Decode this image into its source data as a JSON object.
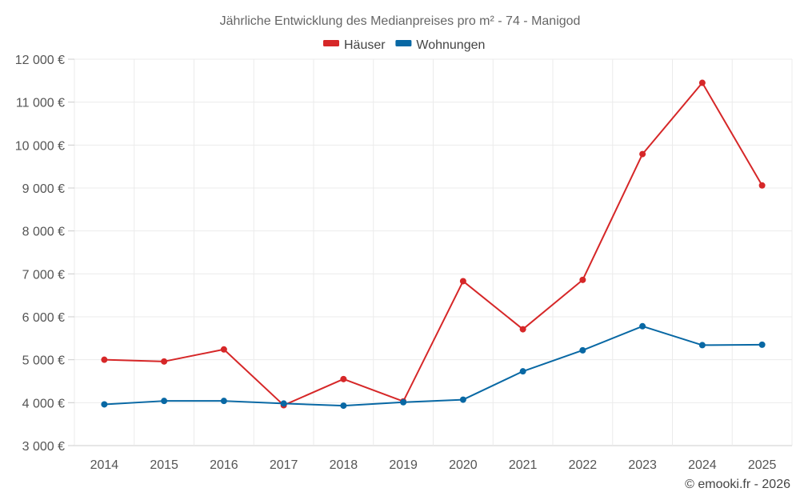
{
  "chart_data": {
    "type": "line",
    "title": "Jährliche Entwicklung des Medianpreises pro m² - 74 - Manigod",
    "categories": [
      "2014",
      "2015",
      "2016",
      "2017",
      "2018",
      "2019",
      "2020",
      "2021",
      "2022",
      "2023",
      "2024",
      "2025"
    ],
    "ylim": [
      3000,
      12000
    ],
    "y_ticks": [
      3000,
      4000,
      5000,
      6000,
      7000,
      8000,
      9000,
      10000,
      11000,
      12000
    ],
    "y_tick_labels": [
      "3 000 €",
      "4 000 €",
      "5 000 €",
      "6 000 €",
      "7 000 €",
      "8 000 €",
      "9 000 €",
      "10 000 €",
      "11 000 €",
      "12 000 €"
    ],
    "grid": true,
    "legend_position": "top-center",
    "series": [
      {
        "name": "Häuser",
        "color": "#d62728",
        "values": [
          5000,
          4960,
          5240,
          3940,
          4550,
          4030,
          6830,
          5710,
          6860,
          9790,
          11450,
          9060
        ]
      },
      {
        "name": "Wohnungen",
        "color": "#0868a4",
        "values": [
          3960,
          4040,
          4040,
          3980,
          3930,
          4010,
          4070,
          4730,
          5220,
          5780,
          5340,
          5350
        ]
      }
    ]
  },
  "credit": "© emooki.fr - 2026"
}
